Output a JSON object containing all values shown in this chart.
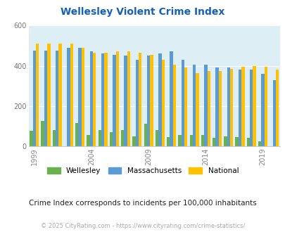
{
  "title": "Wellesley Violent Crime Index",
  "years": [
    1999,
    2000,
    2001,
    2002,
    2003,
    2004,
    2005,
    2006,
    2007,
    2008,
    2009,
    2010,
    2011,
    2012,
    2013,
    2014,
    2015,
    2016,
    2017,
    2018,
    2019,
    2020
  ],
  "wellesley": [
    75,
    125,
    80,
    0,
    115,
    55,
    80,
    70,
    80,
    50,
    110,
    80,
    45,
    55,
    55,
    55,
    40,
    50,
    45,
    40,
    25,
    0
  ],
  "massachusetts": [
    475,
    475,
    475,
    490,
    490,
    470,
    460,
    455,
    450,
    430,
    450,
    460,
    470,
    430,
    405,
    405,
    390,
    390,
    380,
    380,
    360,
    330
  ],
  "national": [
    510,
    510,
    510,
    510,
    490,
    465,
    465,
    470,
    470,
    465,
    455,
    430,
    405,
    390,
    365,
    375,
    375,
    385,
    395,
    400,
    395,
    380
  ],
  "wellesley_color": "#6ab04c",
  "massachusetts_color": "#5b9bd5",
  "national_color": "#ffc000",
  "bg_color": "#ddeef5",
  "ylim": [
    0,
    600
  ],
  "yticks": [
    0,
    200,
    400,
    600
  ],
  "legend_labels": [
    "Wellesley",
    "Massachusetts",
    "National"
  ],
  "subtitle": "Crime Index corresponds to incidents per 100,000 inhabitants",
  "footer": "© 2025 CityRating.com - https://www.cityrating.com/crime-statistics/",
  "bar_width": 0.27,
  "title_color": "#1560bd",
  "subtitle_color": "#222222",
  "footer_color": "#aaaaaa"
}
